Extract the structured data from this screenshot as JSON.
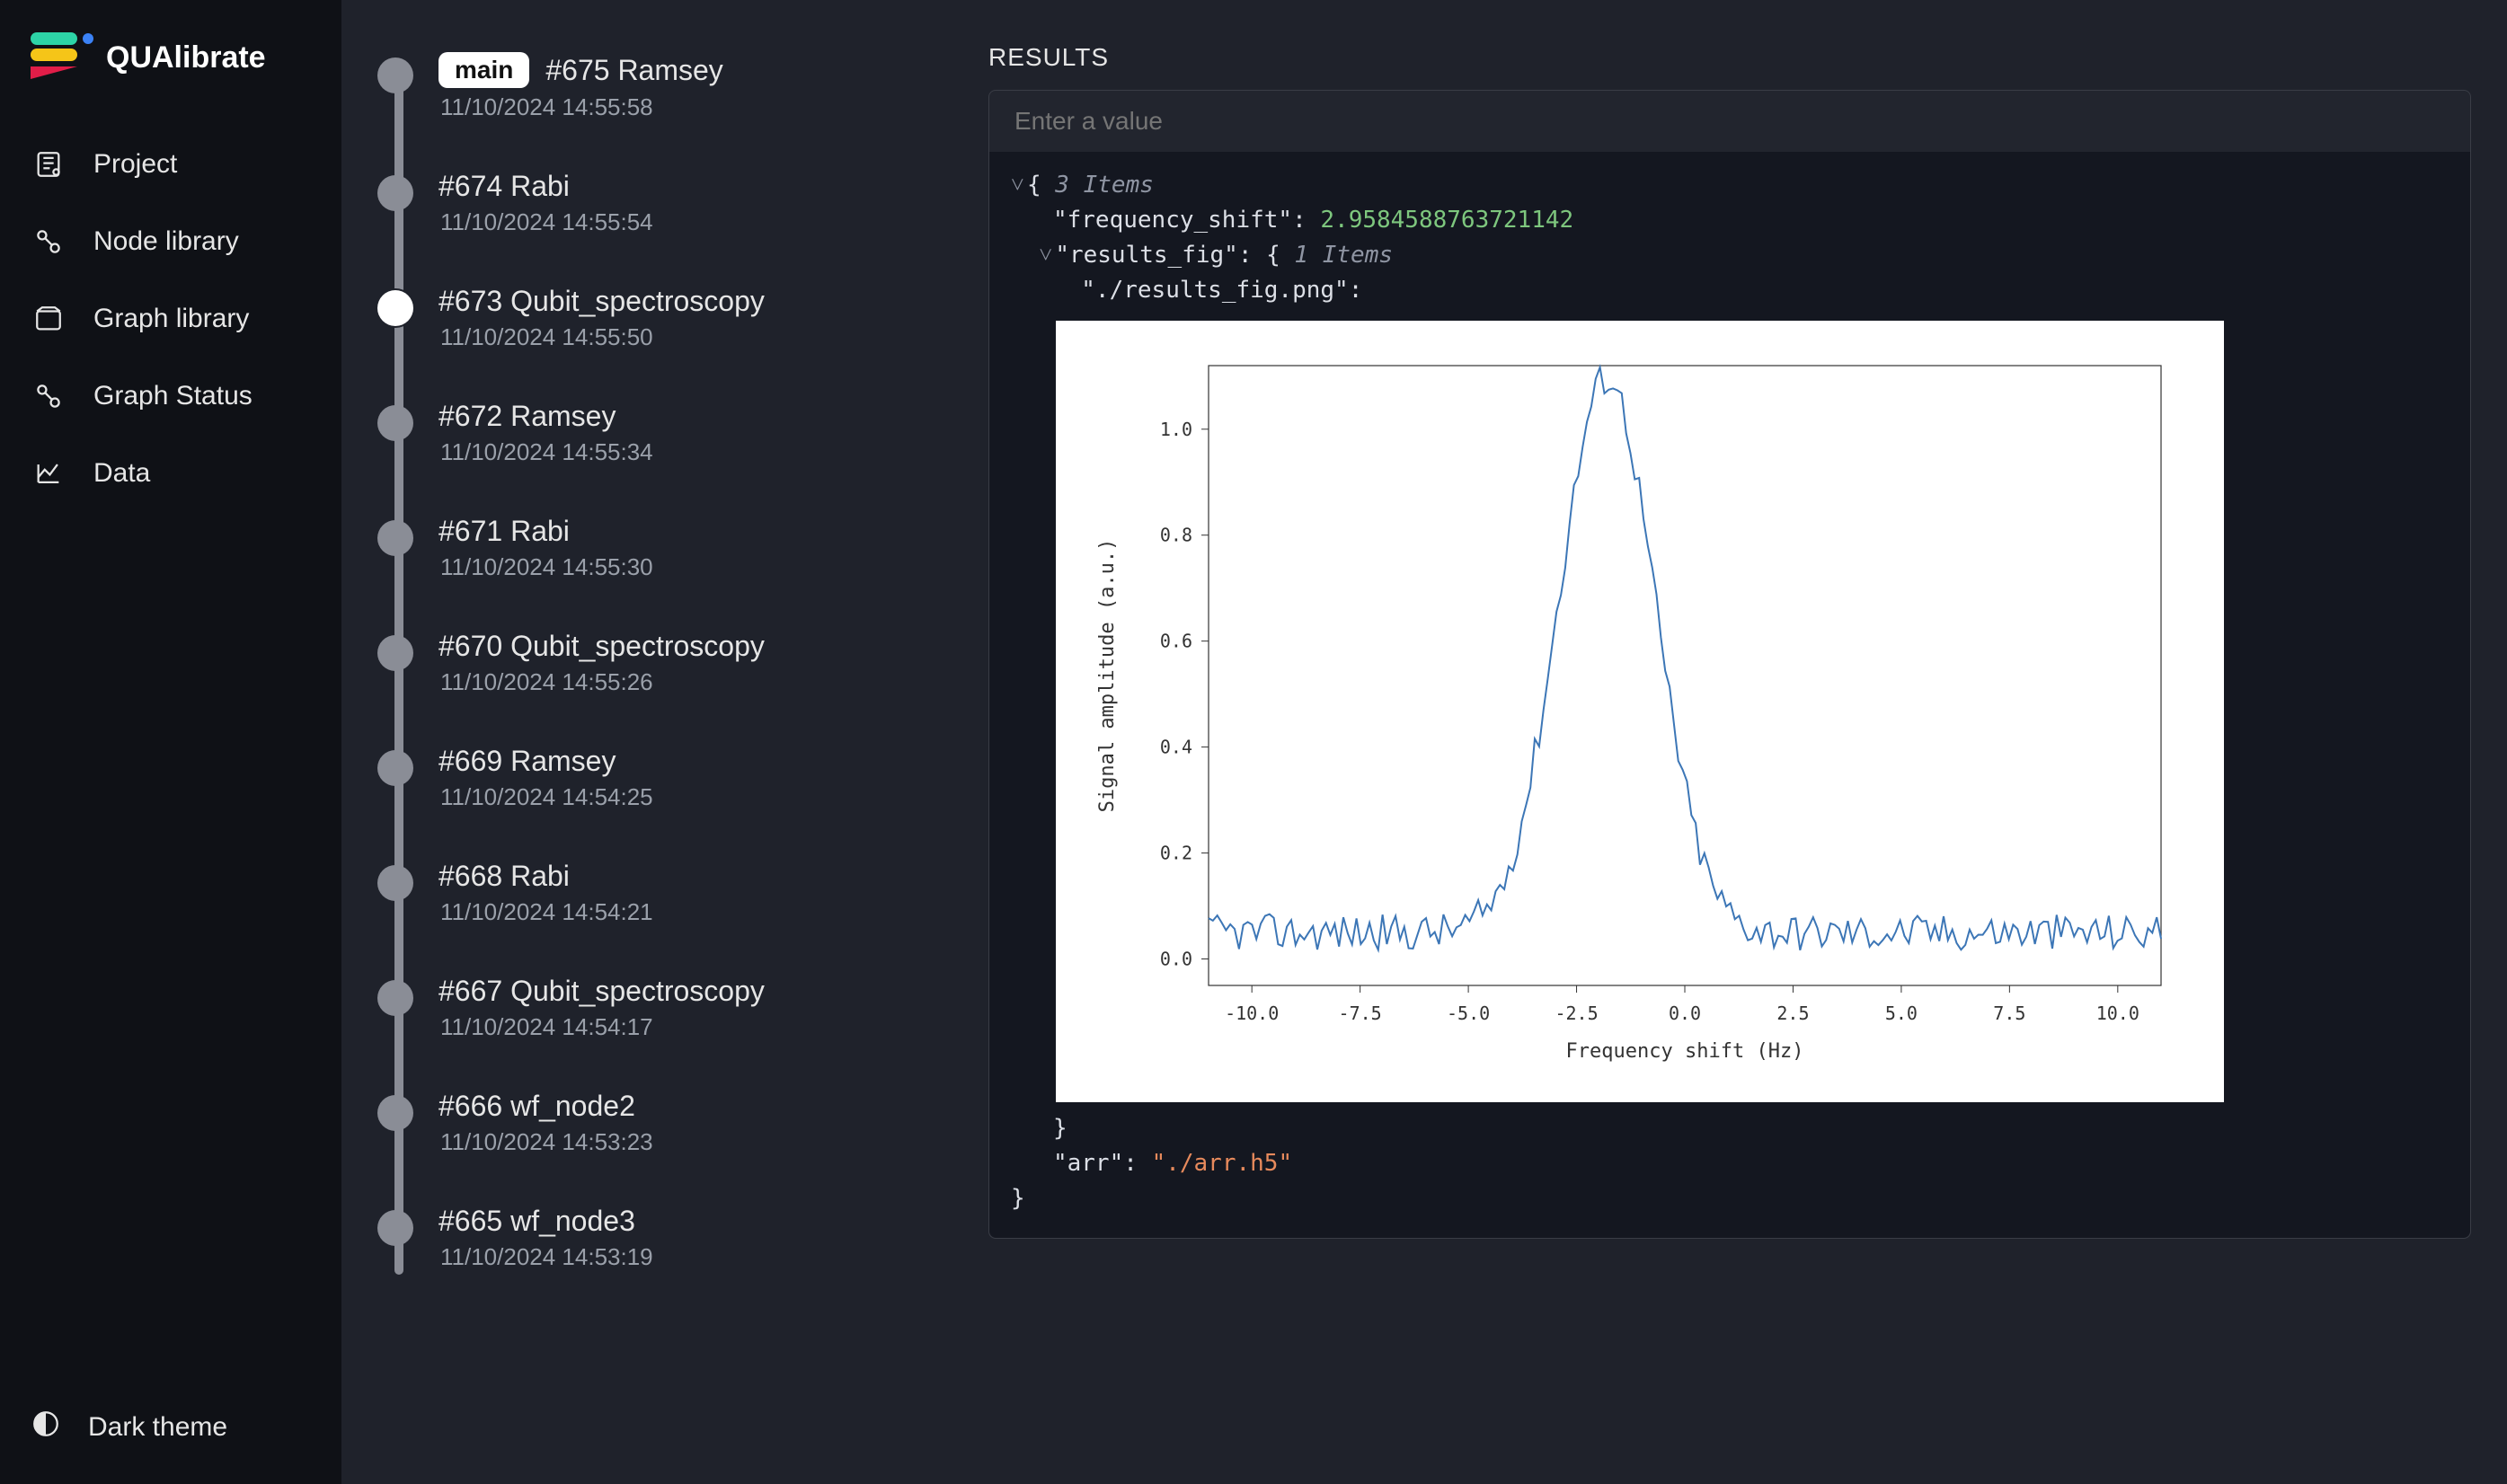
{
  "app": {
    "name": "QUAlibrate"
  },
  "sidebar": {
    "items": [
      {
        "label": "Project",
        "icon": "project"
      },
      {
        "label": "Node library",
        "icon": "node"
      },
      {
        "label": "Graph library",
        "icon": "graph"
      },
      {
        "label": "Graph Status",
        "icon": "status"
      },
      {
        "label": "Data",
        "icon": "data"
      }
    ],
    "theme_label": "Dark theme"
  },
  "runs": {
    "selected_index": 0,
    "items": [
      {
        "id": 675,
        "title": "#675 Ramsey",
        "timestamp": "11/10/2024 14:55:58",
        "branch": "main"
      },
      {
        "id": 674,
        "title": "#674 Rabi",
        "timestamp": "11/10/2024 14:55:54"
      },
      {
        "id": 673,
        "title": "#673 Qubit_spectroscopy",
        "timestamp": "11/10/2024 14:55:50",
        "dot": "active"
      },
      {
        "id": 672,
        "title": "#672 Ramsey",
        "timestamp": "11/10/2024 14:55:34"
      },
      {
        "id": 671,
        "title": "#671 Rabi",
        "timestamp": "11/10/2024 14:55:30"
      },
      {
        "id": 670,
        "title": "#670 Qubit_spectroscopy",
        "timestamp": "11/10/2024 14:55:26"
      },
      {
        "id": 669,
        "title": "#669 Ramsey",
        "timestamp": "11/10/2024 14:54:25"
      },
      {
        "id": 668,
        "title": "#668 Rabi",
        "timestamp": "11/10/2024 14:54:21"
      },
      {
        "id": 667,
        "title": "#667 Qubit_spectroscopy",
        "timestamp": "11/10/2024 14:54:17"
      },
      {
        "id": 666,
        "title": "#666 wf_node2",
        "timestamp": "11/10/2024 14:53:23"
      },
      {
        "id": 665,
        "title": "#665 wf_node3",
        "timestamp": "11/10/2024 14:53:19"
      }
    ]
  },
  "results": {
    "header": "RESULTS",
    "input_placeholder": "Enter a value",
    "json_preview": {
      "root_meta": "3 Items",
      "frequency_shift_key": "\"frequency_shift\"",
      "frequency_shift_val": "2.9584588763721142",
      "results_fig_key": "\"results_fig\"",
      "results_fig_meta": "1 Items",
      "results_fig_path_key": "\"./results_fig.png\"",
      "arr_key": "\"arr\"",
      "arr_val": "\"./arr.h5\""
    }
  },
  "chart": {
    "type": "line",
    "title": null,
    "xlabel": "Frequency shift (Hz)",
    "ylabel": "Signal amplitude (a.u.)",
    "xlim": [
      -11,
      11
    ],
    "ylim": [
      -0.05,
      1.12
    ],
    "xticks": [
      -10.0,
      -7.5,
      -5.0,
      -2.5,
      0.0,
      2.5,
      5.0,
      7.5,
      10.0
    ],
    "yticks": [
      0.0,
      0.2,
      0.4,
      0.6,
      0.8,
      1.0
    ],
    "line_color": "#3c76b6",
    "axis_color": "#333333",
    "tick_color": "#333333",
    "background_color": "#ffffff",
    "label_fontsize": 22,
    "tick_fontsize": 20,
    "line_width": 2.0,
    "noise_amp": 0.035,
    "peak_center": -1.8,
    "peak_height": 1.05,
    "peak_sigma": 1.1,
    "baseline": 0.05,
    "n_points": 220
  }
}
